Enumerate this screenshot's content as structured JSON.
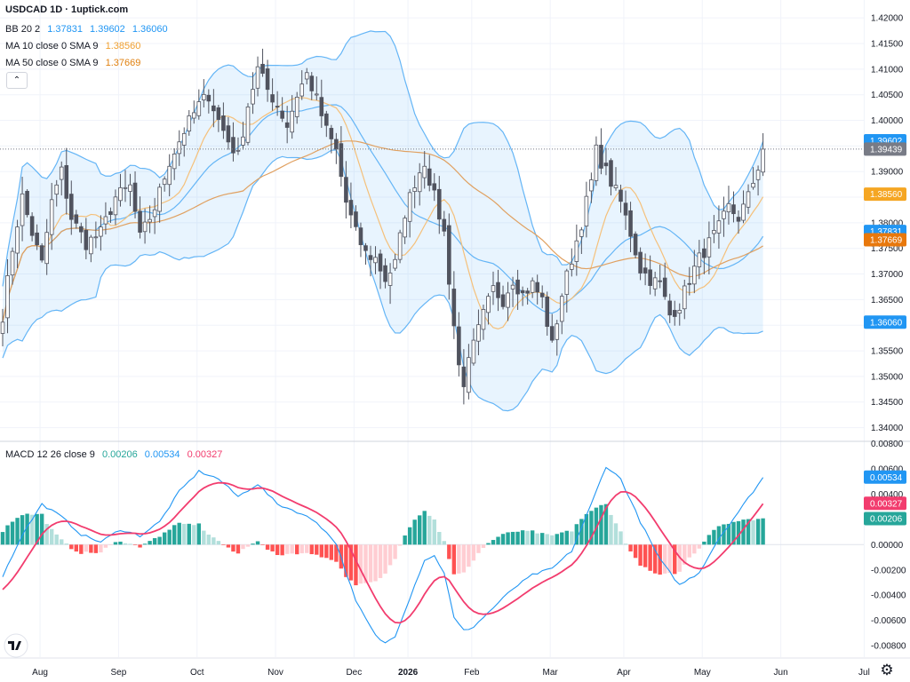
{
  "title": "USDCAD 1D · 1uptick.com",
  "legend": {
    "bb": {
      "label": "BB 20 2",
      "values": [
        "1.37831",
        "1.39602",
        "1.36060"
      ],
      "color": "#2196f3"
    },
    "ma10": {
      "label": "MA 10 close 0 SMA 9",
      "value": "1.38560",
      "color": "#f0a030"
    },
    "ma50": {
      "label": "MA 50 close 0 SMA 9",
      "value": "1.37669",
      "color": "#e08010"
    },
    "macd": {
      "label": "MACD 12 26 close 9",
      "values": [
        "0.00206",
        "0.00534",
        "0.00327"
      ],
      "colors": [
        "#26a69a",
        "#2196f3",
        "#f23c6e"
      ]
    }
  },
  "collapse_icon": "chevron-up-icon",
  "settings_icon": "gear-icon",
  "price_axis": {
    "ticks": [
      "1.42000",
      "1.41500",
      "1.41000",
      "1.40500",
      "1.40000",
      "1.39500",
      "1.39000",
      "1.38500",
      "1.38000",
      "1.37500",
      "1.37000",
      "1.36500",
      "1.36000",
      "1.35500",
      "1.35000",
      "1.34500",
      "1.34000"
    ],
    "tags": [
      {
        "text": "1.39602",
        "value": 1.39602,
        "color": "#2196f3"
      },
      {
        "text": "1.39439",
        "value": 1.39439,
        "color": "#787b86"
      },
      {
        "text": "1.38560",
        "value": 1.3856,
        "color": "#f5a623"
      },
      {
        "text": "1.37831",
        "value": 1.37831,
        "color": "#2196f3"
      },
      {
        "text": "1.37669",
        "value": 1.37669,
        "color": "#e8780c"
      },
      {
        "text": "1.36060",
        "value": 1.3606,
        "color": "#2196f3"
      }
    ],
    "range": [
      1.3375,
      1.4235
    ]
  },
  "macd_axis": {
    "ticks": [
      "0.00800",
      "0.00600",
      "0.00400",
      "0.00200",
      "0.00000",
      "-0.00200",
      "-0.00400",
      "-0.00600",
      "-0.00800"
    ],
    "tags": [
      {
        "text": "0.00534",
        "value": 0.00534,
        "color": "#2196f3"
      },
      {
        "text": "0.00327",
        "value": 0.00327,
        "color": "#f23c6e"
      },
      {
        "text": "0.00206",
        "value": 0.00206,
        "color": "#26a69a"
      }
    ],
    "range": [
      -0.0089,
      0.0081
    ]
  },
  "time_axis": [
    {
      "label": "Aug",
      "bold": false
    },
    {
      "label": "Sep",
      "bold": false
    },
    {
      "label": "Oct",
      "bold": false
    },
    {
      "label": "Nov",
      "bold": false
    },
    {
      "label": "Dec",
      "bold": false
    },
    {
      "label": "2026",
      "bold": true
    },
    {
      "label": "Feb",
      "bold": false
    },
    {
      "label": "Mar",
      "bold": false
    },
    {
      "label": "Apr",
      "bold": false
    },
    {
      "label": "May",
      "bold": false
    },
    {
      "label": "Jun",
      "bold": false
    },
    {
      "label": "Jul",
      "bold": false
    }
  ],
  "chart_data": {
    "type": "candlestick",
    "symbol": "USDCAD",
    "interval": "1D",
    "last_price": 1.39439,
    "close_anchors": [
      [
        0,
        1.362
      ],
      [
        2,
        1.375
      ],
      [
        4,
        1.385
      ],
      [
        6,
        1.378
      ],
      [
        8,
        1.372
      ],
      [
        10,
        1.384
      ],
      [
        12,
        1.39
      ],
      [
        14,
        1.381
      ],
      [
        17,
        1.376
      ],
      [
        20,
        1.378
      ],
      [
        23,
        1.385
      ],
      [
        26,
        1.387
      ],
      [
        28,
        1.377
      ],
      [
        31,
        1.383
      ],
      [
        34,
        1.392
      ],
      [
        37,
        1.398
      ],
      [
        40,
        1.403
      ],
      [
        42,
        1.405
      ],
      [
        44,
        1.4
      ],
      [
        46,
        1.396
      ],
      [
        48,
        1.393
      ],
      [
        50,
        1.403
      ],
      [
        52,
        1.41
      ],
      [
        54,
        1.406
      ],
      [
        56,
        1.403
      ],
      [
        58,
        1.399
      ],
      [
        60,
        1.405
      ],
      [
        62,
        1.409
      ],
      [
        64,
        1.404
      ],
      [
        66,
        1.398
      ],
      [
        68,
        1.394
      ],
      [
        70,
        1.384
      ],
      [
        72,
        1.378
      ],
      [
        74,
        1.374
      ],
      [
        76,
        1.373
      ],
      [
        78,
        1.369
      ],
      [
        80,
        1.372
      ],
      [
        82,
        1.382
      ],
      [
        84,
        1.388
      ],
      [
        86,
        1.392
      ],
      [
        88,
        1.385
      ],
      [
        90,
        1.378
      ],
      [
        92,
        1.36
      ],
      [
        93,
        1.352
      ],
      [
        94,
        1.349
      ],
      [
        96,
        1.356
      ],
      [
        98,
        1.362
      ],
      [
        100,
        1.367
      ],
      [
        102,
        1.365
      ],
      [
        104,
        1.369
      ],
      [
        106,
        1.366
      ],
      [
        108,
        1.368
      ],
      [
        110,
        1.365
      ],
      [
        112,
        1.356
      ],
      [
        114,
        1.366
      ],
      [
        116,
        1.373
      ],
      [
        118,
        1.38
      ],
      [
        120,
        1.388
      ],
      [
        121,
        1.394
      ],
      [
        122,
        1.392
      ],
      [
        124,
        1.388
      ],
      [
        126,
        1.384
      ],
      [
        128,
        1.378
      ],
      [
        130,
        1.371
      ],
      [
        132,
        1.369
      ],
      [
        134,
        1.368
      ],
      [
        136,
        1.362
      ],
      [
        138,
        1.364
      ],
      [
        140,
        1.369
      ],
      [
        142,
        1.373
      ],
      [
        144,
        1.376
      ],
      [
        146,
        1.379
      ],
      [
        148,
        1.383
      ],
      [
        150,
        1.381
      ],
      [
        152,
        1.385
      ],
      [
        154,
        1.391
      ],
      [
        155,
        1.3944
      ]
    ],
    "macd_anchors": [
      [
        0,
        -0.0025
      ],
      [
        4,
        0.0008
      ],
      [
        8,
        0.0032
      ],
      [
        12,
        0.0022
      ],
      [
        16,
        0.0008
      ],
      [
        20,
        0.0002
      ],
      [
        24,
        0.0012
      ],
      [
        28,
        0.0007
      ],
      [
        32,
        0.0018
      ],
      [
        36,
        0.0042
      ],
      [
        40,
        0.0058
      ],
      [
        44,
        0.0052
      ],
      [
        48,
        0.0038
      ],
      [
        52,
        0.0048
      ],
      [
        56,
        0.0032
      ],
      [
        60,
        0.0026
      ],
      [
        64,
        0.0018
      ],
      [
        68,
        0.0001
      ],
      [
        72,
        -0.0045
      ],
      [
        76,
        -0.0072
      ],
      [
        78,
        -0.0078
      ],
      [
        80,
        -0.0072
      ],
      [
        84,
        -0.0032
      ],
      [
        86,
        -0.0012
      ],
      [
        88,
        -0.0009
      ],
      [
        90,
        -0.0022
      ],
      [
        92,
        -0.0058
      ],
      [
        94,
        -0.0068
      ],
      [
        96,
        -0.0065
      ],
      [
        100,
        -0.005
      ],
      [
        104,
        -0.0035
      ],
      [
        108,
        -0.0024
      ],
      [
        112,
        -0.0019
      ],
      [
        116,
        -0.0005
      ],
      [
        120,
        0.0032
      ],
      [
        123,
        0.0062
      ],
      [
        126,
        0.0052
      ],
      [
        130,
        0.0018
      ],
      [
        134,
        -0.0012
      ],
      [
        138,
        -0.0032
      ],
      [
        142,
        -0.0022
      ],
      [
        146,
        0.0005
      ],
      [
        150,
        0.0026
      ],
      [
        155,
        0.0053
      ]
    ],
    "note": "Bollinger Bands (20,2), MA10, MA50 on price; MACD(12,26,9) histogram, MACD and signal lines in lower pane"
  }
}
